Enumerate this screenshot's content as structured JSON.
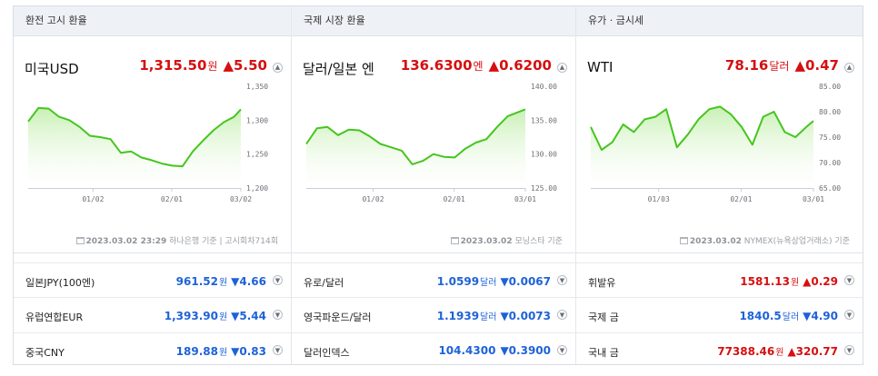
{
  "panels": [
    {
      "title": "환전 고시 환율",
      "main": {
        "name": "미국USD",
        "value": "1,315.50",
        "unit": "원",
        "change": "▲5.50"
      },
      "source": {
        "date": "2023.03.02 23:29",
        "text": "하나은행 기준",
        "extra": "고시회차714회"
      },
      "rows": [
        {
          "name": "일본JPY(100엔)",
          "value": "961.52",
          "unit": "원",
          "change": "▼4.66",
          "dir": "down"
        },
        {
          "name": "유럽연합EUR",
          "value": "1,393.90",
          "unit": "원",
          "change": "▼5.44",
          "dir": "down"
        },
        {
          "name": "중국CNY",
          "value": "189.88",
          "unit": "원",
          "change": "▼0.83",
          "dir": "down"
        }
      ]
    },
    {
      "title": "국제 시장 환율",
      "main": {
        "name": "달러/일본 엔",
        "value": "136.6300",
        "unit": "엔",
        "change": "▲0.6200"
      },
      "source": {
        "date": "2023.03.02",
        "text": "모닝스타 기준",
        "extra": ""
      },
      "rows": [
        {
          "name": "유로/달러",
          "value": "1.0599",
          "unit": "달러",
          "change": "▼0.0067",
          "dir": "down"
        },
        {
          "name": "영국파운드/달러",
          "value": "1.1939",
          "unit": "달러",
          "change": "▼0.0073",
          "dir": "down"
        },
        {
          "name": "달러인덱스",
          "value": "104.4300",
          "unit": "",
          "change": "▼0.3900",
          "dir": "down"
        }
      ]
    },
    {
      "title": "유가 · 금시세",
      "main": {
        "name": "WTI",
        "value": "78.16",
        "unit": "달러",
        "change": "▲0.47"
      },
      "source": {
        "date": "2023.03.02",
        "text": "NYMEX(뉴욕상업거래소) 기준",
        "extra": ""
      },
      "rows": [
        {
          "name": "휘발유",
          "value": "1581.13",
          "unit": "원",
          "change": "▲0.29",
          "dir": "up"
        },
        {
          "name": "국제 금",
          "value": "1840.5",
          "unit": "달러",
          "change": "▼4.90",
          "dir": "down"
        },
        {
          "name": "국내 금",
          "value": "77388.46",
          "unit": "원",
          "change": "▲320.77",
          "dir": "up"
        }
      ]
    }
  ],
  "chart_data": [
    {
      "type": "area",
      "xticks": [
        "01/02",
        "02/01",
        "03/02"
      ],
      "yticks": [
        "1,350",
        "1,300",
        "1,250",
        "1,200"
      ],
      "ylim": [
        1200,
        1350
      ],
      "x": [
        0,
        3,
        6,
        9,
        12,
        15,
        18,
        21,
        24,
        27,
        30,
        33,
        36,
        39,
        42,
        45,
        48,
        51,
        54,
        57,
        60,
        62
      ],
      "values": [
        1298,
        1318,
        1317,
        1305,
        1300,
        1290,
        1277,
        1275,
        1272,
        1252,
        1254,
        1245,
        1241,
        1236,
        1233,
        1232,
        1254,
        1270,
        1285,
        1297,
        1305,
        1316
      ],
      "line_color": "#46c51f",
      "fill_color": "#c8f0b4"
    },
    {
      "type": "area",
      "xticks": [
        "01/02",
        "02/01",
        "03/01"
      ],
      "yticks": [
        "140.00",
        "135.00",
        "130.00",
        "125.00"
      ],
      "ylim": [
        125,
        140
      ],
      "x": [
        0,
        3,
        6,
        9,
        12,
        15,
        18,
        21,
        24,
        27,
        30,
        33,
        36,
        39,
        42,
        45,
        48,
        51,
        54,
        57,
        60,
        62
      ],
      "values": [
        131.5,
        133.8,
        134.0,
        132.8,
        133.6,
        133.5,
        132.6,
        131.5,
        131.0,
        130.5,
        128.5,
        129.0,
        130.0,
        129.6,
        129.5,
        130.8,
        131.7,
        132.2,
        134.0,
        135.6,
        136.2,
        136.6
      ],
      "line_color": "#46c51f",
      "fill_color": "#c8f0b4"
    },
    {
      "type": "area",
      "xticks": [
        "01/03",
        "02/01",
        "03/01"
      ],
      "yticks": [
        "85.00",
        "80.00",
        "75.00",
        "70.00",
        "65.00"
      ],
      "ylim": [
        65,
        85
      ],
      "x": [
        0,
        3,
        6,
        9,
        12,
        15,
        18,
        21,
        24,
        27,
        30,
        33,
        36,
        39,
        42,
        45,
        48,
        51,
        54,
        57,
        60,
        62
      ],
      "values": [
        77.0,
        72.5,
        74.0,
        77.5,
        76.0,
        78.5,
        79.0,
        80.5,
        73.0,
        75.5,
        78.5,
        80.5,
        81.0,
        79.5,
        77.0,
        73.5,
        79.0,
        80.0,
        76.0,
        75.0,
        77.0,
        78.2
      ],
      "line_color": "#46c51f",
      "fill_color": "#c8f0b4"
    }
  ]
}
